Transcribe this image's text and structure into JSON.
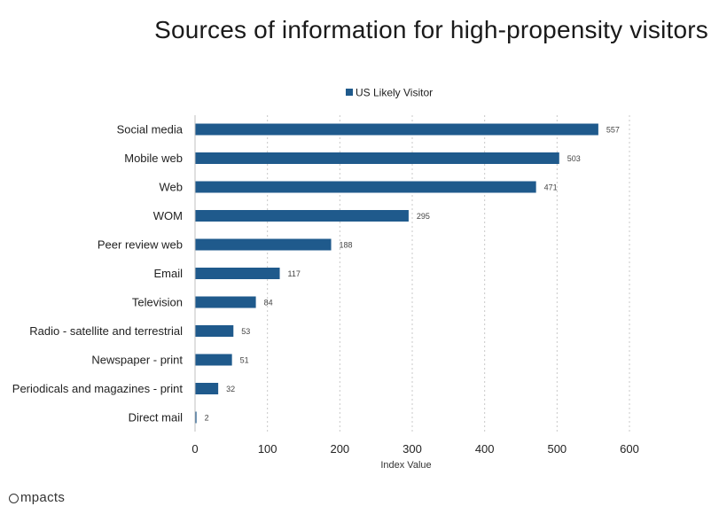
{
  "chart_data": {
    "type": "bar",
    "orientation": "horizontal",
    "title": "Sources of information for high-propensity visitors",
    "xlabel": "Index Value",
    "ylabel": "",
    "xlim": [
      0,
      600
    ],
    "xticks": [
      0,
      100,
      200,
      300,
      400,
      500,
      600
    ],
    "grid": "vertical dashed",
    "legend_position": "top-center",
    "categories": [
      "Social media",
      "Mobile web",
      "Web",
      "WOM",
      "Peer review web",
      "Email",
      "Television",
      "Radio - satellite and terrestrial",
      "Newspaper - print",
      "Periodicals and magazines - print",
      "Direct mail"
    ],
    "series": [
      {
        "name": "US Likely Visitor",
        "color": "#1f5a8c",
        "values": [
          557,
          503,
          471,
          295,
          188,
          117,
          84,
          53,
          51,
          32,
          2
        ]
      }
    ]
  },
  "brand": {
    "text": "mpacts",
    "icon": "impacts-logo-icon"
  }
}
